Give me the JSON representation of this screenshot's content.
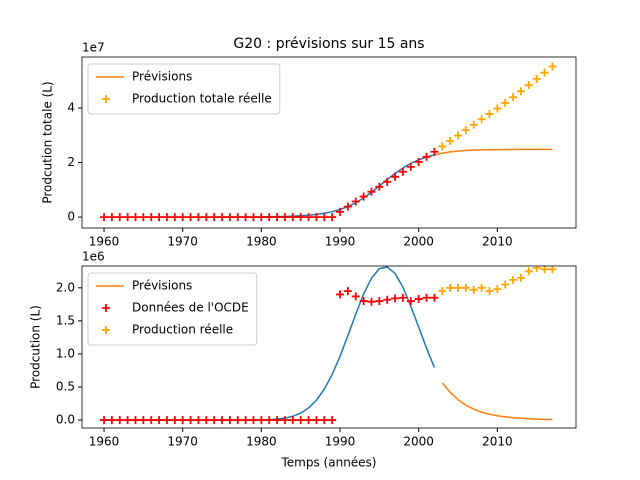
{
  "chart_data": [
    {
      "type": "line",
      "title": "G20 : prévisions sur 15 ans",
      "ylabel": "Prodcution totale (L)",
      "y_offset_label": "1e7",
      "xlim": [
        1957.2,
        2020.0
      ],
      "xticks": [
        1960,
        1970,
        1980,
        1990,
        2000,
        2010
      ],
      "ylim": [
        -4000000,
        58700000
      ],
      "yticks": [
        0,
        {
          "value": 20000000,
          "label": "2"
        },
        {
          "value": 40000000,
          "label": "4"
        }
      ],
      "grid": false,
      "legend": "upper left",
      "series": [
        {
          "color": "#1f77b4",
          "marker": "-",
          "x": [
            1960,
            1961,
            1962,
            1963,
            1964,
            1965,
            1966,
            1967,
            1968,
            1969,
            1970,
            1971,
            1972,
            1973,
            1974,
            1975,
            1976,
            1977,
            1978,
            1979,
            1980,
            1981,
            1982,
            1983,
            1984,
            1985,
            1986,
            1987,
            1988,
            1989,
            1990,
            1991,
            1992,
            1993,
            1994,
            1995,
            1996,
            1997,
            1998,
            1999,
            2000,
            2001,
            2002
          ],
          "values": [
            0,
            0,
            0,
            0,
            0,
            0,
            0,
            0,
            0,
            0,
            2000,
            3000,
            4000,
            6000,
            8000,
            12000,
            18000,
            26000,
            37000,
            54000,
            78000,
            112000,
            162000,
            233000,
            335000,
            481000,
            690000,
            985000,
            1400000,
            1980000,
            2780000,
            3850000,
            5250000,
            7000000,
            9100000,
            11400000,
            13800000,
            16000000,
            18000000,
            19700000,
            21000000,
            22000000,
            22800000
          ]
        },
        {
          "name": "Prévisions",
          "color": "#ff7f0e",
          "marker": "-",
          "x": [
            2002,
            2003,
            2004,
            2005,
            2006,
            2007,
            2008,
            2009,
            2010,
            2011,
            2012,
            2013,
            2014,
            2015,
            2016,
            2017
          ],
          "values": [
            22800000,
            23400000,
            23900000,
            24200000,
            24400000,
            24550000,
            24650000,
            24700000,
            24750000,
            24780000,
            24800000,
            24820000,
            24830000,
            24840000,
            24845000,
            24850000
          ]
        },
        {
          "color": "#ff0000",
          "marker": "+",
          "x": [
            1960,
            1961,
            1962,
            1963,
            1964,
            1965,
            1966,
            1967,
            1968,
            1969,
            1970,
            1971,
            1972,
            1973,
            1974,
            1975,
            1976,
            1977,
            1978,
            1979,
            1980,
            1981,
            1982,
            1983,
            1984,
            1985,
            1986,
            1987,
            1988,
            1989,
            1990,
            1991,
            1992,
            1993,
            1994,
            1995,
            1996,
            1997,
            1998,
            1999,
            2000,
            2001,
            2002
          ],
          "values": [
            0,
            0,
            0,
            0,
            0,
            0,
            0,
            0,
            0,
            0,
            0,
            0,
            0,
            0,
            0,
            0,
            0,
            0,
            0,
            0,
            0,
            0,
            0,
            0,
            0,
            0,
            0,
            0,
            0,
            0,
            1900000,
            3850000,
            5720000,
            7520000,
            9310000,
            11110000,
            12930000,
            14770000,
            16620000,
            18420000,
            20250000,
            22100000,
            23950000
          ]
        },
        {
          "name": "Production totale réelle",
          "color": "#ffa500",
          "marker": "+",
          "x": [
            2003,
            2004,
            2005,
            2006,
            2007,
            2008,
            2009,
            2010,
            2011,
            2012,
            2013,
            2014,
            2015,
            2016,
            2017
          ],
          "values": [
            25900000,
            27900000,
            29900000,
            31900000,
            33870000,
            35870000,
            37820000,
            39800000,
            41850000,
            43970000,
            46120000,
            48370000,
            50670000,
            52950000,
            55230000
          ]
        }
      ]
    },
    {
      "type": "line",
      "ylabel": "Prodcution (L)",
      "xlabel": "Temps (années)",
      "y_offset_label": "1e6",
      "xlim": [
        1957.2,
        2020.0
      ],
      "xticks": [
        1960,
        1970,
        1980,
        1990,
        2000,
        2010
      ],
      "ylim": [
        -120000,
        2330000
      ],
      "yticks": [
        {
          "value": 0,
          "label": "0.0"
        },
        {
          "value": 500000,
          "label": "0.5"
        },
        {
          "value": 1000000,
          "label": "1.0"
        },
        {
          "value": 1500000,
          "label": "1.5"
        },
        {
          "value": 2000000,
          "label": "2.0"
        }
      ],
      "grid": false,
      "legend": "upper left",
      "series": [
        {
          "color": "#1f77b4",
          "marker": "-",
          "x": [
            1960,
            1961,
            1962,
            1963,
            1964,
            1965,
            1966,
            1967,
            1968,
            1969,
            1970,
            1971,
            1972,
            1973,
            1974,
            1975,
            1976,
            1977,
            1978,
            1979,
            1980,
            1981,
            1982,
            1983,
            1984,
            1985,
            1986,
            1987,
            1988,
            1989,
            1990,
            1991,
            1992,
            1993,
            1994,
            1995,
            1996,
            1997,
            1998,
            1999,
            2000,
            2001,
            2002
          ],
          "values": [
            0,
            0,
            0,
            0,
            0,
            0,
            0,
            0,
            0,
            0,
            0,
            0,
            0,
            0,
            0,
            0,
            0,
            0,
            0,
            0,
            2800,
            6500,
            14600,
            30000,
            57000,
            105000,
            183000,
            300000,
            468000,
            690000,
            964000,
            1277000,
            1600000,
            1905000,
            2146000,
            2290000,
            2314000,
            2217000,
            2010000,
            1720000,
            1407000,
            1087000,
            795000
          ]
        },
        {
          "name": "Prévisions",
          "color": "#ff7f0e",
          "marker": "-",
          "x": [
            2003,
            2004,
            2005,
            2006,
            2007,
            2008,
            2009,
            2010,
            2011,
            2012,
            2013,
            2014,
            2015,
            2016,
            2017
          ],
          "values": [
            560000,
            420000,
            310000,
            225000,
            165000,
            120000,
            88000,
            65000,
            48000,
            36000,
            27000,
            20000,
            15000,
            11000,
            8000
          ]
        },
        {
          "name": "Données de l'OCDE",
          "color": "#ff0000",
          "marker": "+",
          "x": [
            1960,
            1961,
            1962,
            1963,
            1964,
            1965,
            1966,
            1967,
            1968,
            1969,
            1970,
            1971,
            1972,
            1973,
            1974,
            1975,
            1976,
            1977,
            1978,
            1979,
            1980,
            1981,
            1982,
            1983,
            1984,
            1985,
            1986,
            1987,
            1988,
            1989,
            1990,
            1991,
            1992,
            1993,
            1994,
            1995,
            1996,
            1997,
            1998,
            1999,
            2000,
            2001,
            2002
          ],
          "values": [
            0,
            0,
            0,
            0,
            0,
            0,
            0,
            0,
            0,
            0,
            0,
            0,
            0,
            0,
            0,
            0,
            0,
            0,
            0,
            0,
            0,
            0,
            0,
            0,
            0,
            0,
            0,
            0,
            0,
            0,
            1900000,
            1950000,
            1870000,
            1800000,
            1790000,
            1800000,
            1820000,
            1840000,
            1850000,
            1800000,
            1830000,
            1850000,
            1850000
          ]
        },
        {
          "name": "Production réelle",
          "color": "#ffa500",
          "marker": "+",
          "x": [
            2003,
            2004,
            2005,
            2006,
            2007,
            2008,
            2009,
            2010,
            2011,
            2012,
            2013,
            2014,
            2015,
            2016,
            2017
          ],
          "values": [
            1950000,
            2000000,
            2000000,
            2000000,
            1970000,
            2000000,
            1950000,
            1980000,
            2050000,
            2120000,
            2150000,
            2250000,
            2300000,
            2280000,
            2280000
          ]
        }
      ]
    }
  ]
}
